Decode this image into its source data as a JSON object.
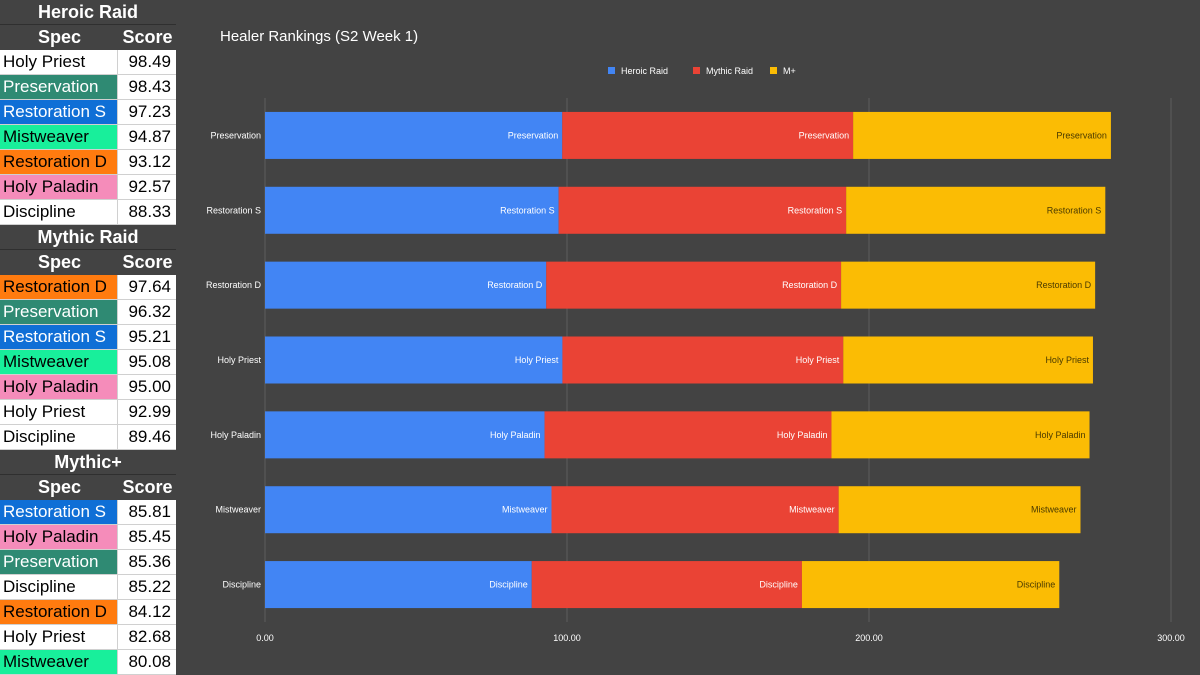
{
  "tables": [
    {
      "title": "Heroic Raid",
      "spec_header": "Spec",
      "score_header": "Score",
      "rows": [
        {
          "spec": "Holy Priest",
          "score": "98.49",
          "color": "#ffffff",
          "text_color": "#000000"
        },
        {
          "spec": "Preservation",
          "score": "98.43",
          "color": "#2f8a73",
          "text_color": "#ffffff"
        },
        {
          "spec": "Restoration S",
          "score": "97.23",
          "color": "#0f6fd6",
          "text_color": "#ffffff"
        },
        {
          "spec": "Mistweaver",
          "score": "94.87",
          "color": "#18ef9b",
          "text_color": "#000000"
        },
        {
          "spec": "Restoration D",
          "score": "93.12",
          "color": "#ff7b0f",
          "text_color": "#000000"
        },
        {
          "spec": "Holy Paladin",
          "score": "92.57",
          "color": "#f58cba",
          "text_color": "#000000"
        },
        {
          "spec": "Discipline",
          "score": "88.33",
          "color": "#ffffff",
          "text_color": "#000000"
        }
      ]
    },
    {
      "title": "Mythic Raid",
      "spec_header": "Spec",
      "score_header": "Score",
      "rows": [
        {
          "spec": "Restoration D",
          "score": "97.64",
          "color": "#ff7b0f",
          "text_color": "#000000"
        },
        {
          "spec": "Preservation",
          "score": "96.32",
          "color": "#2f8a73",
          "text_color": "#ffffff"
        },
        {
          "spec": "Restoration S",
          "score": "95.21",
          "color": "#0f6fd6",
          "text_color": "#ffffff"
        },
        {
          "spec": "Mistweaver",
          "score": "95.08",
          "color": "#18ef9b",
          "text_color": "#000000"
        },
        {
          "spec": "Holy Paladin",
          "score": "95.00",
          "color": "#f58cba",
          "text_color": "#000000"
        },
        {
          "spec": "Holy Priest",
          "score": "92.99",
          "color": "#ffffff",
          "text_color": "#000000"
        },
        {
          "spec": "Discipline",
          "score": "89.46",
          "color": "#ffffff",
          "text_color": "#000000"
        }
      ]
    },
    {
      "title": "Mythic+",
      "spec_header": "Spec",
      "score_header": "Score",
      "rows": [
        {
          "spec": "Restoration S",
          "score": "85.81",
          "color": "#0f6fd6",
          "text_color": "#ffffff"
        },
        {
          "spec": "Holy Paladin",
          "score": "85.45",
          "color": "#f58cba",
          "text_color": "#000000"
        },
        {
          "spec": "Preservation",
          "score": "85.36",
          "color": "#2f8a73",
          "text_color": "#ffffff"
        },
        {
          "spec": "Discipline",
          "score": "85.22",
          "color": "#ffffff",
          "text_color": "#000000"
        },
        {
          "spec": "Restoration D",
          "score": "84.12",
          "color": "#ff7b0f",
          "text_color": "#000000"
        },
        {
          "spec": "Holy Priest",
          "score": "82.68",
          "color": "#ffffff",
          "text_color": "#000000"
        },
        {
          "spec": "Mistweaver",
          "score": "80.08",
          "color": "#18ef9b",
          "text_color": "#000000"
        }
      ]
    }
  ],
  "chart_data": {
    "type": "bar",
    "orientation": "horizontal",
    "stacked": true,
    "title": "Healer Rankings (S2 Week 1)",
    "categories": [
      "Preservation",
      "Restoration S",
      "Restoration D",
      "Holy Priest",
      "Holy Paladin",
      "Mistweaver",
      "Discipline"
    ],
    "series": [
      {
        "name": "Heroic Raid",
        "color": "#4285f4",
        "values": [
          98.43,
          97.23,
          93.12,
          98.49,
          92.57,
          94.87,
          88.33
        ]
      },
      {
        "name": "Mythic Raid",
        "color": "#ea4335",
        "values": [
          96.32,
          95.21,
          97.64,
          92.99,
          95.0,
          95.08,
          89.46
        ]
      },
      {
        "name": "M+",
        "color": "#fbbc04",
        "values": [
          85.36,
          85.81,
          84.12,
          82.68,
          85.45,
          80.08,
          85.22
        ]
      }
    ],
    "xlim": [
      0,
      300
    ],
    "xticks": [
      "0.00",
      "100.00",
      "200.00",
      "300.00"
    ],
    "xtick_values": [
      0,
      100,
      200,
      300
    ],
    "grid": true,
    "legend_position": "top"
  }
}
